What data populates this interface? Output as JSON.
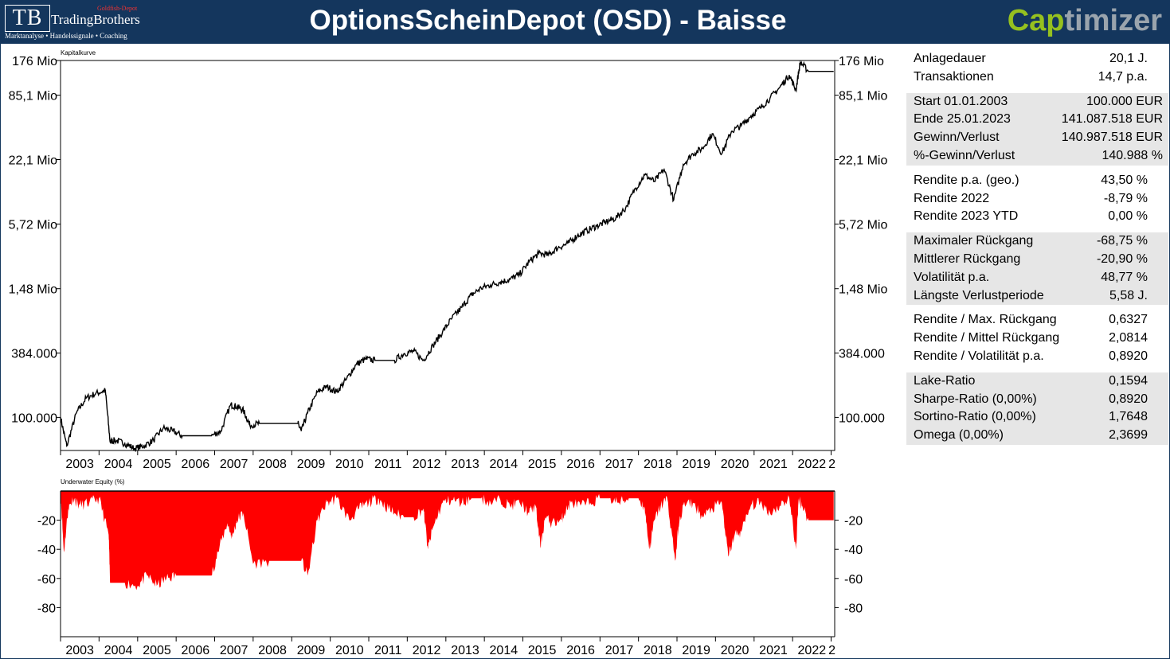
{
  "header": {
    "title": "OptionsScheinDepot (OSD) - Baisse",
    "logo_mark": "TB",
    "logo_name": "TradingBrothers",
    "logo_goldfish": "Goldfish-Depot",
    "logo_tagline": "Marktanalyse • Handelssignale • Coaching",
    "brand_a": "Cap",
    "brand_b": "timizer",
    "brand_colors": {
      "a": "#96c11f",
      "b": "#9aa4ad"
    }
  },
  "chart_data": [
    {
      "type": "line",
      "title": "Kapitalkurve",
      "y_scale": "log",
      "y_ticks": [
        100000,
        384000,
        1480000,
        5720000,
        22100000,
        85100000,
        176000000
      ],
      "y_tick_labels": [
        "100.000",
        "384.000",
        "1,48 Mio",
        "5,72 Mio",
        "22,1 Mio",
        "85,1 Mio",
        "176 Mio"
      ],
      "ylim": [
        50000,
        176000000
      ],
      "x_tick_labels": [
        "2003",
        "2004",
        "2005",
        "2006",
        "2007",
        "2008",
        "2009",
        "2010",
        "2011",
        "2012",
        "2013",
        "2014",
        "2015",
        "2016",
        "2017",
        "2018",
        "2019",
        "2020",
        "2021",
        "2022",
        "2"
      ],
      "xlim": [
        "2003-01-01",
        "2023-01-25"
      ],
      "color": "#000000",
      "x": [
        "2003-01-01",
        "2003-03-01",
        "2003-06-01",
        "2003-09-01",
        "2003-12-01",
        "2004-03-01",
        "2004-04-15",
        "2004-06-01",
        "2004-09-01",
        "2004-12-01",
        "2005-03-01",
        "2005-06-01",
        "2005-09-01",
        "2005-12-01",
        "2006-03-01",
        "2006-06-01",
        "2006-09-01",
        "2006-12-01",
        "2007-03-01",
        "2007-06-01",
        "2007-08-01",
        "2007-10-01",
        "2007-12-01",
        "2008-03-01",
        "2008-06-01",
        "2008-09-01",
        "2008-12-01",
        "2009-03-01",
        "2009-04-01",
        "2009-06-01",
        "2009-09-01",
        "2009-12-01",
        "2010-03-01",
        "2010-06-01",
        "2010-09-01",
        "2010-12-01",
        "2011-03-01",
        "2011-06-01",
        "2011-09-01",
        "2011-12-01",
        "2012-03-01",
        "2012-06-01",
        "2012-09-01",
        "2012-12-01",
        "2013-03-01",
        "2013-06-01",
        "2013-09-01",
        "2013-12-01",
        "2014-03-01",
        "2014-06-01",
        "2014-09-01",
        "2014-12-01",
        "2015-03-01",
        "2015-06-01",
        "2015-09-01",
        "2015-12-01",
        "2016-03-01",
        "2016-06-01",
        "2016-09-01",
        "2016-12-01",
        "2017-03-01",
        "2017-06-01",
        "2017-09-01",
        "2017-12-01",
        "2018-03-01",
        "2018-06-01",
        "2018-09-01",
        "2018-12-01",
        "2019-03-01",
        "2019-06-01",
        "2019-09-01",
        "2019-12-01",
        "2020-03-01",
        "2020-06-01",
        "2020-09-01",
        "2020-12-01",
        "2021-03-01",
        "2021-06-01",
        "2021-09-01",
        "2021-12-01",
        "2022-02-01",
        "2022-03-15",
        "2022-06-01",
        "2022-09-01",
        "2022-12-01",
        "2023-01-25"
      ],
      "y": [
        100000,
        55000,
        110000,
        150000,
        165000,
        175000,
        60000,
        62000,
        58000,
        52000,
        55000,
        62000,
        80000,
        75000,
        68000,
        68000,
        68000,
        68000,
        75000,
        130000,
        125000,
        115000,
        85000,
        88000,
        88000,
        88000,
        88000,
        88000,
        75000,
        110000,
        170000,
        190000,
        170000,
        220000,
        300000,
        340000,
        330000,
        330000,
        330000,
        380000,
        400000,
        330000,
        450000,
        600000,
        800000,
        1000000,
        1300000,
        1500000,
        1600000,
        1700000,
        1800000,
        2000000,
        2600000,
        3100000,
        3000000,
        3500000,
        3800000,
        4500000,
        5000000,
        5500000,
        6000000,
        6500000,
        8000000,
        12000000,
        16000000,
        14000000,
        18000000,
        9500000,
        20000000,
        25000000,
        28000000,
        38000000,
        25000000,
        40000000,
        45000000,
        55000000,
        65000000,
        80000000,
        100000000,
        130000000,
        95000000,
        170000000,
        140000000,
        140000000,
        140000000,
        140000000
      ]
    },
    {
      "type": "area",
      "title": "Underwater Equity (%)",
      "y_ticks": [
        -20,
        -40,
        -60,
        -80
      ],
      "y_tick_labels": [
        "-20",
        "-40",
        "-60",
        "-80"
      ],
      "ylim": [
        -100,
        0
      ],
      "x_tick_labels": [
        "2003",
        "2004",
        "2005",
        "2006",
        "2007",
        "2008",
        "2009",
        "2010",
        "2011",
        "2012",
        "2013",
        "2014",
        "2015",
        "2016",
        "2017",
        "2018",
        "2019",
        "2020",
        "2021",
        "2022",
        "2"
      ],
      "xlim": [
        "2003-01-01",
        "2023-01-25"
      ],
      "color": "#ff0000",
      "x": [
        "2003-01-01",
        "2003-02-01",
        "2003-03-15",
        "2003-05-01",
        "2003-07-01",
        "2003-10-01",
        "2004-01-01",
        "2004-04-01",
        "2004-04-15",
        "2004-09-01",
        "2005-01-01",
        "2005-04-01",
        "2005-07-01",
        "2005-10-01",
        "2006-01-01",
        "2006-06-01",
        "2006-12-01",
        "2007-02-01",
        "2007-05-01",
        "2007-06-15",
        "2007-08-01",
        "2007-10-01",
        "2008-01-01",
        "2008-06-01",
        "2008-12-01",
        "2009-03-01",
        "2009-04-01",
        "2009-06-01",
        "2009-09-01",
        "2009-12-01",
        "2010-03-01",
        "2010-07-01",
        "2010-10-01",
        "2011-01-01",
        "2011-04-01",
        "2011-06-01",
        "2011-09-01",
        "2011-12-01",
        "2012-03-01",
        "2012-06-01",
        "2012-07-15",
        "2012-09-01",
        "2012-12-01",
        "2013-03-01",
        "2013-06-01",
        "2013-09-01",
        "2013-12-01",
        "2014-03-01",
        "2014-06-01",
        "2014-09-01",
        "2014-12-01",
        "2015-03-01",
        "2015-05-01",
        "2015-06-15",
        "2015-08-01",
        "2015-10-01",
        "2016-01-01",
        "2016-02-01",
        "2016-04-01",
        "2016-07-01",
        "2016-10-01",
        "2017-01-01",
        "2017-04-01",
        "2017-07-01",
        "2017-10-01",
        "2018-01-01",
        "2018-03-01",
        "2018-04-15",
        "2018-06-01",
        "2018-08-01",
        "2018-10-01",
        "2018-12-15",
        "2019-01-15",
        "2019-03-01",
        "2019-06-01",
        "2019-09-01",
        "2019-12-01",
        "2020-03-01",
        "2020-05-01",
        "2020-07-01",
        "2020-09-01",
        "2020-12-01",
        "2021-03-01",
        "2021-06-01",
        "2021-09-01",
        "2021-12-01",
        "2022-02-01",
        "2022-03-01",
        "2022-04-01",
        "2022-06-01",
        "2022-09-01",
        "2022-12-01",
        "2023-01-25"
      ],
      "y": [
        0,
        -42,
        -12,
        -5,
        -10,
        -8,
        -5,
        -30,
        -63,
        -63,
        -65,
        -58,
        -65,
        -60,
        -58,
        -58,
        -58,
        -42,
        -22,
        -32,
        -20,
        -15,
        -50,
        -48,
        -48,
        -48,
        -48,
        -58,
        -20,
        -8,
        -5,
        -20,
        -12,
        -8,
        -5,
        -10,
        -15,
        -18,
        -18,
        -12,
        -40,
        -25,
        -8,
        -6,
        -8,
        -5,
        -5,
        -8,
        -6,
        -10,
        -8,
        -15,
        -10,
        -38,
        -18,
        -22,
        -20,
        -15,
        -8,
        -10,
        -8,
        -5,
        -5,
        -8,
        -5,
        -5,
        -12,
        -40,
        -20,
        -10,
        -5,
        -48,
        -25,
        -10,
        -8,
        -18,
        -12,
        -8,
        -45,
        -30,
        -28,
        -10,
        -8,
        -15,
        -10,
        -5,
        -40,
        -5,
        -10,
        -20,
        -20,
        -20,
        -20
      ]
    }
  ],
  "stats": [
    {
      "shaded": false,
      "rows": [
        {
          "label": "Anlagedauer",
          "value": "20,1 J."
        },
        {
          "label": "Transaktionen",
          "value": "14,7 p.a."
        }
      ]
    },
    {
      "shaded": true,
      "wide": true,
      "rows": [
        {
          "label": "Start  01.01.2003",
          "value": "100.000 EUR"
        },
        {
          "label": "Ende  25.01.2023",
          "value": "141.087.518 EUR"
        },
        {
          "label": "Gewinn/Verlust",
          "value": "140.987.518 EUR"
        },
        {
          "label": "%-Gewinn/Verlust",
          "value": "140.988 %"
        }
      ]
    },
    {
      "shaded": false,
      "rows": [
        {
          "label": "Rendite p.a. (geo.)",
          "value": "43,50 %"
        },
        {
          "label": "Rendite 2022",
          "value": "-8,79 %"
        },
        {
          "label": "Rendite 2023 YTD",
          "value": "0,00 %"
        }
      ]
    },
    {
      "shaded": true,
      "rows": [
        {
          "label": "Maximaler Rückgang",
          "value": "-68,75 %"
        },
        {
          "label": "Mittlerer Rückgang",
          "value": "-20,90 %"
        },
        {
          "label": "Volatilität p.a.",
          "value": "48,77 %"
        },
        {
          "label": "Längste Verlustperiode",
          "value": "5,58 J."
        }
      ]
    },
    {
      "shaded": false,
      "rows": [
        {
          "label": "Rendite / Max. Rückgang",
          "value": "0,6327"
        },
        {
          "label": "Rendite / Mittel Rückgang",
          "value": "2,0814"
        },
        {
          "label": "Rendite / Volatilität p.a.",
          "value": "0,8920"
        }
      ]
    },
    {
      "shaded": true,
      "rows": [
        {
          "label": "Lake-Ratio",
          "value": "0,1594"
        },
        {
          "label": "Sharpe-Ratio (0,00%)",
          "value": "0,8920"
        },
        {
          "label": "Sortino-Ratio (0,00%)",
          "value": "1,7648"
        },
        {
          "label": "Omega (0,00%)",
          "value": "2,3699"
        }
      ]
    }
  ]
}
